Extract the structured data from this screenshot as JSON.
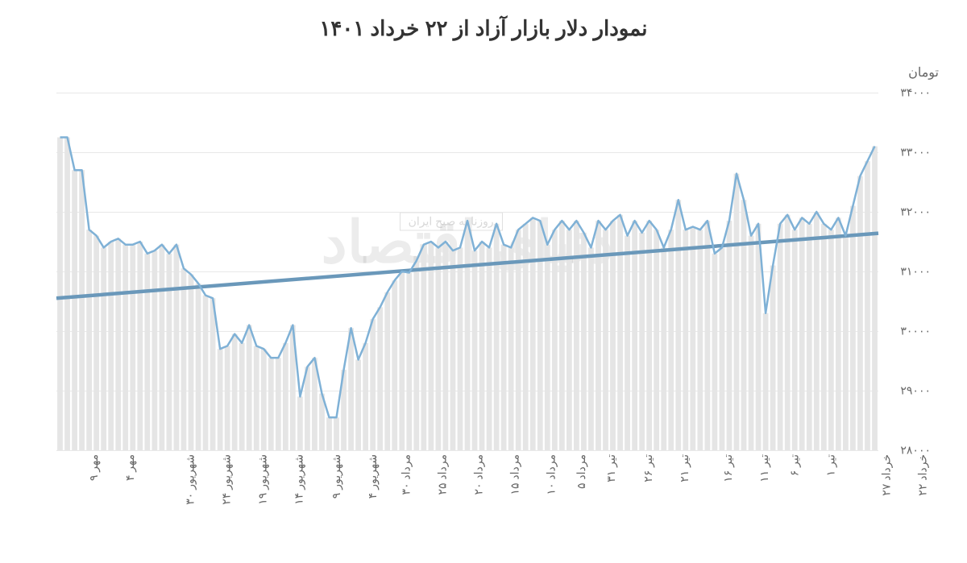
{
  "chart": {
    "type": "line-with-bars",
    "title": "نمودار دلار بازار آزاد از ۲۲ خرداد ۱۴۰۱",
    "ylabel": "تومان",
    "title_fontsize": 26,
    "label_fontsize": 16,
    "tick_fontsize": 14,
    "ylim": [
      28000,
      34000
    ],
    "yticks": [
      28000,
      29000,
      30000,
      31000,
      32000,
      33000,
      34000
    ],
    "ytick_labels": [
      "۲۸۰۰۰",
      "۲۹۰۰۰",
      "۳۰۰۰۰",
      "۳۱۰۰۰",
      "۳۲۰۰۰",
      "۳۳۰۰۰",
      "۳۴۰۰۰"
    ],
    "x_labels": [
      "خرداد ۲۲",
      "خرداد ۲۷",
      "تیر ۱",
      "تیر ۶",
      "تیر ۱۱",
      "تیر ۱۶",
      "تیر ۲۱",
      "تیر ۲۶",
      "تیر ۳۱",
      "مرداد ۵",
      "مرداد ۱۰",
      "مرداد ۱۵",
      "مرداد ۲۰",
      "مرداد ۲۵",
      "مرداد ۳۰",
      "شهریور ۴",
      "شهریور ۹",
      "شهریور ۱۴",
      "شهریور ۱۹",
      "شهریور ۲۴",
      "شهریور ۳۰",
      "مهر ۴",
      "مهر ۹"
    ],
    "values": [
      33100,
      32850,
      32600,
      32100,
      31600,
      31900,
      31700,
      31800,
      32000,
      31800,
      31900,
      31700,
      31950,
      31800,
      31100,
      30300,
      31800,
      31600,
      32200,
      32640,
      31850,
      31400,
      31300,
      31850,
      31700,
      31750,
      31700,
      32200,
      31700,
      31400,
      31700,
      31850,
      31650,
      31850,
      31600,
      31950,
      31850,
      31700,
      31850,
      31400,
      31650,
      31850,
      31700,
      31850,
      31700,
      31450,
      31850,
      31900,
      31800,
      31700,
      31400,
      31450,
      31800,
      31400,
      31500,
      31350,
      31850,
      31400,
      31350,
      31500,
      31400,
      31500,
      31450,
      31180,
      30980,
      31000,
      30850,
      30650,
      30400,
      30200,
      29800,
      29520,
      30050,
      29350,
      28550,
      28550,
      28950,
      29550,
      29400,
      28900,
      30100,
      29800,
      29550,
      29550,
      29700,
      29750,
      30100,
      29800,
      29950,
      29750,
      29700,
      30550,
      30600,
      30800,
      30950,
      31050,
      31450,
      31300,
      31450,
      31350,
      31300,
      31500,
      31450,
      31450,
      31550,
      31500,
      31400,
      31600,
      31700,
      32700,
      32700,
      33250,
      33250
    ],
    "line_color": "#7fb1d6",
    "line_width": 2.5,
    "bar_color": "#e5e5e5",
    "bar_width_ratio": 0.75,
    "trend_line": {
      "start_y": 31640,
      "end_y": 30550,
      "color": "#6a98ba",
      "width": 1.5
    },
    "background_color": "#ffffff",
    "grid_color": "#e8e8e8",
    "watermark_main": "دنیای اقتصاد",
    "watermark_sub": "روزنامه صبح ایران"
  }
}
